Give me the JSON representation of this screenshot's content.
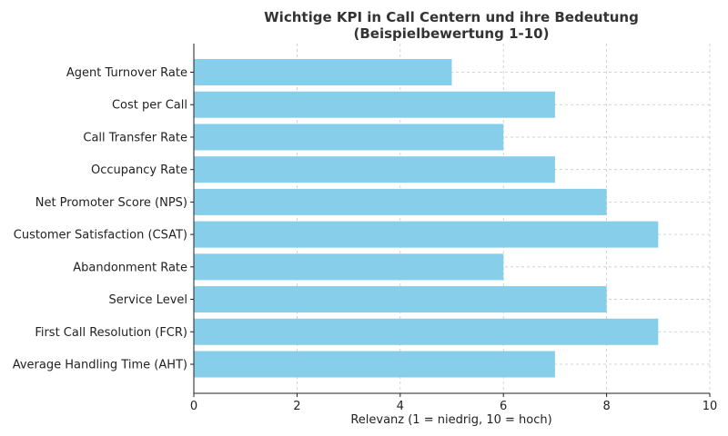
{
  "chart_data": {
    "type": "bar",
    "orientation": "horizontal",
    "title": "Wichtige KPI in Call Centern und ihre Bedeutung",
    "subtitle": "(Beispielbewertung 1-10)",
    "xlabel": "Relevanz (1 = niedrig, 10 = hoch)",
    "ylabel": "",
    "categories": [
      "Average Handling Time (AHT)",
      "First Call Resolution (FCR)",
      "Service Level",
      "Abandonment Rate",
      "Customer Satisfaction (CSAT)",
      "Net Promoter Score (NPS)",
      "Occupancy Rate",
      "Call Transfer Rate",
      "Cost per Call",
      "Agent Turnover Rate"
    ],
    "values": [
      7,
      9,
      8,
      6,
      9,
      8,
      7,
      6,
      7,
      5
    ],
    "xlim": [
      0,
      10
    ],
    "xticks": [
      "0",
      "2",
      "4",
      "6",
      "8",
      "10"
    ],
    "grid": true,
    "bar_color": "#87ceeb"
  }
}
